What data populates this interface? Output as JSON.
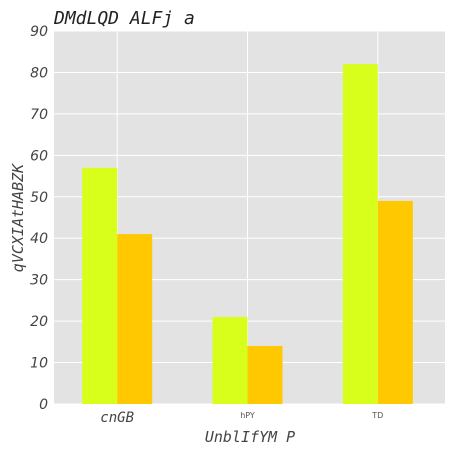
{
  "chart_data": {
    "type": "bar",
    "title": "DMdLQD ALFj a",
    "xlabel": "UnblIfYM P",
    "ylabel": "qVCXIAtHABZK",
    "categories": [
      "cnGB",
      "hPY",
      "TD"
    ],
    "series": [
      {
        "values": [
          57,
          21,
          82
        ],
        "color": "#d8ff1c"
      },
      {
        "values": [
          41,
          14,
          49
        ],
        "color": "#ffc800"
      }
    ],
    "ylim": [
      0,
      90
    ],
    "yticks": [
      0,
      10,
      20,
      30,
      40,
      50,
      60,
      70,
      80,
      90
    ],
    "grid": true,
    "plot_background": "#e3e3e3"
  }
}
